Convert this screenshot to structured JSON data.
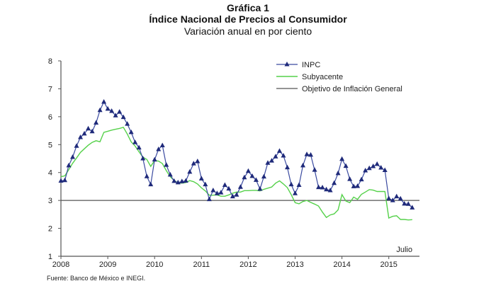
{
  "chart_data": {
    "type": "line",
    "title": "Gráfica 1",
    "subtitle": "Índice Nacional de Precios al Consumidor",
    "subtitle2": "Variación anual en por ciento",
    "xlabel": "",
    "ylabel": "",
    "ylim": [
      1,
      8
    ],
    "yticks": [
      "8",
      "7",
      "6",
      "5",
      "4",
      "3",
      "2",
      "1"
    ],
    "xticks": [
      "2008",
      "2009",
      "2010",
      "2011",
      "2012",
      "2013",
      "2014",
      "2015"
    ],
    "end_annotation": "Julio",
    "legend_position": "upper right",
    "grid": false,
    "source": "Fuente: Banco de México e INEGI.",
    "x_start": "2008-01",
    "x_end": "2015-07",
    "frequency": "monthly",
    "series": [
      {
        "name": "INPC",
        "color": "#1f2a7a",
        "marker": "triangle",
        "values": [
          3.7,
          3.72,
          4.25,
          4.55,
          4.95,
          5.26,
          5.39,
          5.57,
          5.47,
          5.78,
          6.23,
          6.53,
          6.28,
          6.2,
          6.04,
          6.17,
          5.98,
          5.74,
          5.44,
          5.08,
          4.89,
          4.5,
          3.86,
          3.57,
          4.46,
          4.83,
          4.97,
          4.27,
          3.92,
          3.69,
          3.64,
          3.68,
          3.7,
          4.02,
          4.32,
          4.4,
          3.78,
          3.57,
          3.04,
          3.36,
          3.25,
          3.28,
          3.55,
          3.42,
          3.14,
          3.2,
          3.48,
          3.82,
          4.05,
          3.87,
          3.73,
          3.41,
          3.85,
          4.34,
          4.42,
          4.57,
          4.77,
          4.6,
          4.18,
          3.57,
          3.25,
          3.55,
          4.25,
          4.65,
          4.63,
          4.09,
          3.47,
          3.46,
          3.39,
          3.36,
          3.62,
          3.97,
          4.48,
          4.23,
          3.76,
          3.5,
          3.51,
          3.75,
          4.07,
          4.15,
          4.22,
          4.3,
          4.17,
          4.08,
          3.07,
          3.0,
          3.14,
          3.06,
          2.88,
          2.87,
          2.74
        ]
      },
      {
        "name": "Subyacente",
        "color": "#55d14a",
        "values": [
          3.85,
          3.88,
          4.1,
          4.33,
          4.52,
          4.72,
          4.85,
          4.98,
          5.08,
          5.14,
          5.1,
          5.44,
          5.48,
          5.52,
          5.55,
          5.58,
          5.62,
          5.38,
          5.1,
          4.95,
          4.74,
          4.55,
          4.47,
          4.22,
          4.43,
          4.41,
          4.32,
          4.07,
          3.85,
          3.72,
          3.63,
          3.62,
          3.64,
          3.71,
          3.67,
          3.59,
          3.45,
          3.34,
          3.19,
          3.19,
          3.2,
          3.15,
          3.15,
          3.2,
          3.26,
          3.3,
          3.3,
          3.35,
          3.35,
          3.36,
          3.36,
          3.34,
          3.4,
          3.44,
          3.48,
          3.62,
          3.7,
          3.59,
          3.46,
          3.21,
          2.92,
          2.88,
          2.96,
          3.0,
          2.93,
          2.87,
          2.8,
          2.58,
          2.39,
          2.48,
          2.52,
          2.66,
          3.21,
          2.98,
          2.92,
          3.12,
          3.04,
          3.22,
          3.3,
          3.39,
          3.37,
          3.32,
          3.32,
          3.32,
          2.37,
          2.43,
          2.45,
          2.32,
          2.32,
          2.3,
          2.31
        ]
      },
      {
        "name": "Objetivo de Inflación General",
        "color": "#555555",
        "values": [
          3.0
        ]
      }
    ]
  },
  "legend": {
    "items": [
      {
        "label": "INPC"
      },
      {
        "label": "Subyacente"
      },
      {
        "label": "Objetivo de Inflación General"
      }
    ]
  }
}
